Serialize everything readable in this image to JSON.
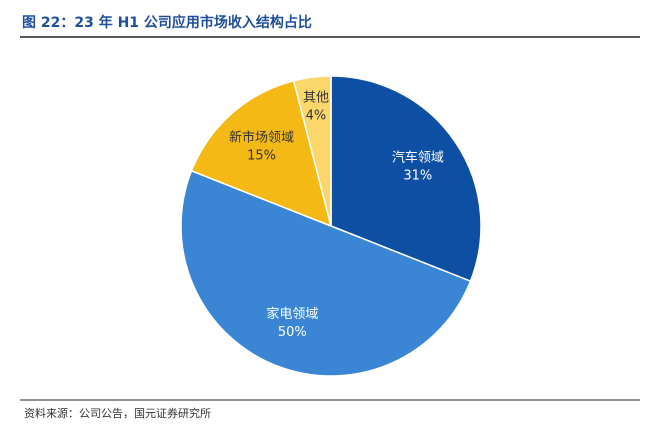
{
  "chart_data": {
    "type": "pie",
    "title": "图 22：23 年 H1 公司应用市场收入结构占比",
    "source": "资料来源：公司公告，国元证券研究所",
    "categories": [
      "汽车领域",
      "家电领域",
      "新市场领域",
      "其他"
    ],
    "values": [
      31,
      50,
      15,
      4
    ],
    "value_labels": [
      "31%",
      "50%",
      "15%",
      "4%"
    ],
    "colors": [
      "#0d4fa3",
      "#3a86d4",
      "#f5b915",
      "#fbd66a"
    ]
  }
}
